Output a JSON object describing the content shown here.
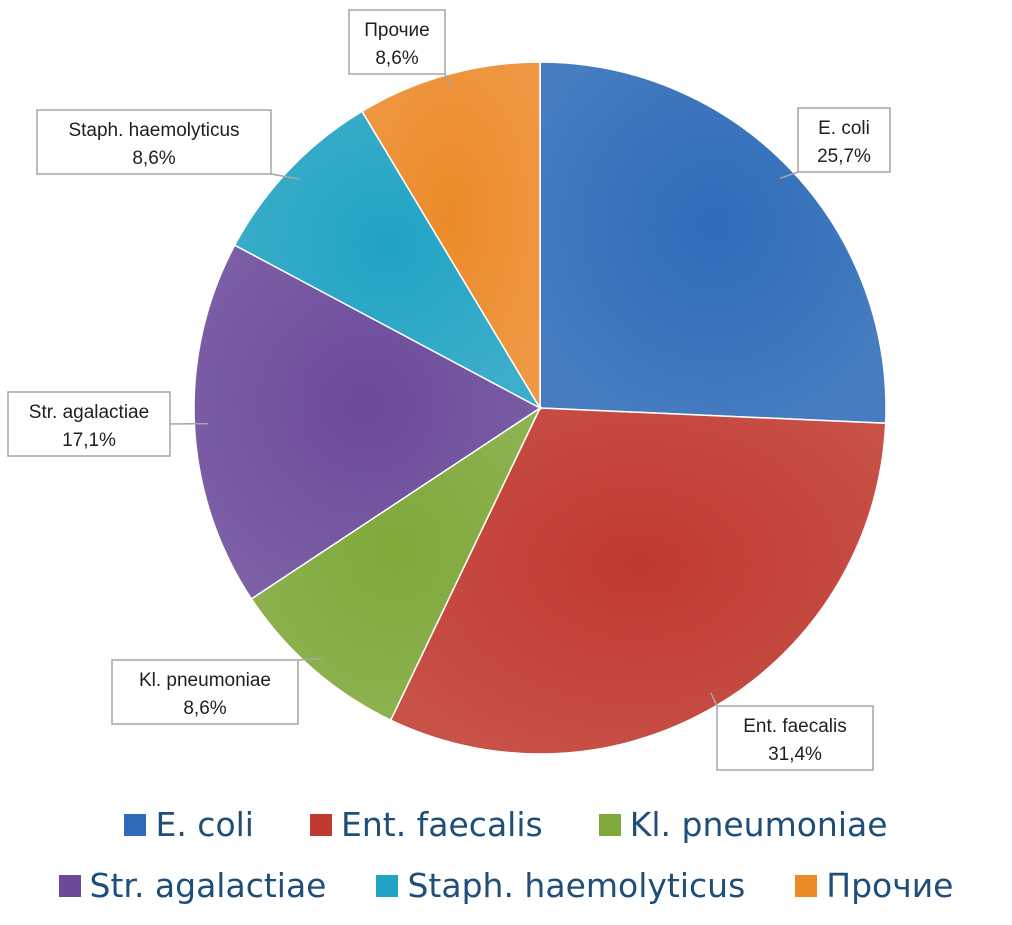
{
  "chart_data": {
    "type": "pie",
    "categories": [
      "E. coli",
      "Ent. faecalis",
      "Kl. pneumoniae",
      "Str. agalactiae",
      "Staph. haemolyticus",
      "Прочие"
    ],
    "values": [
      25.7,
      31.4,
      8.6,
      17.1,
      8.6,
      8.6
    ],
    "labels": [
      "25,7%",
      "31,4%",
      "8,6%",
      "17,1%",
      "8,6%",
      "8,6%"
    ],
    "colors": [
      "#2e6bb8",
      "#c0392f",
      "#7fa83a",
      "#6b4a9a",
      "#22a3c4",
      "#ec8a29"
    ],
    "legend_position": "bottom"
  }
}
